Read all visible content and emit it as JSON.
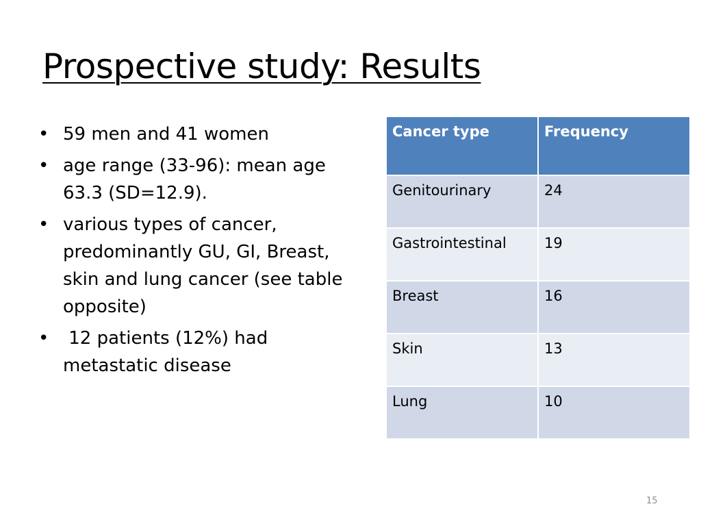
{
  "slide": {
    "title": "Prospective study: Results",
    "page_number": "15"
  },
  "bullets": [
    {
      "text": "59 men and 41 women"
    },
    {
      "text": "age range (33-96): mean age 63.3 (SD=12.9)."
    },
    {
      "text": "various types of cancer, predominantly GU, GI, Breast, skin and lung cancer (see table opposite)"
    },
    {
      "text": " 12 patients (12%) had metastatic disease"
    }
  ],
  "bullet_symbol": "•",
  "table": {
    "headers": [
      "Cancer type",
      "Frequency"
    ],
    "rows": [
      {
        "type": "Genitourinary",
        "frequency": "24"
      },
      {
        "type": "Gastrointestinal",
        "frequency": "19"
      },
      {
        "type": "Breast",
        "frequency": "16"
      },
      {
        "type": "Skin",
        "frequency": "13"
      },
      {
        "type": "Lung",
        "frequency": "10"
      }
    ]
  },
  "colors": {
    "header_bg": "#4f81bd",
    "row_odd_bg": "#d0d8e8",
    "row_even_bg": "#e9edf4"
  }
}
